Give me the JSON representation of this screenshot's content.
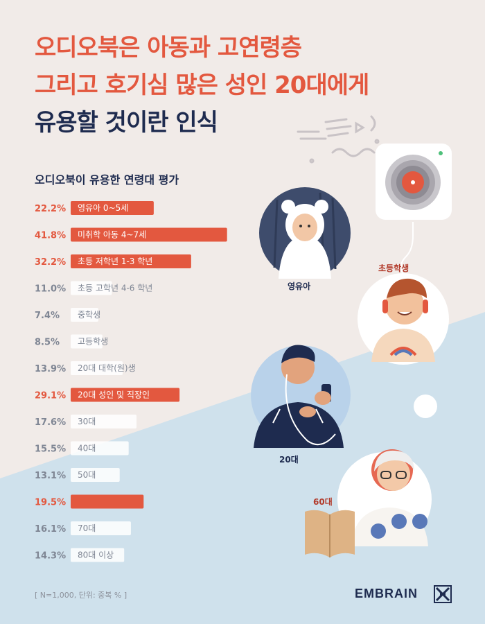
{
  "title": {
    "line1": "오디오북은 아동과 고연령층",
    "line2": "그리고 호기심 많은 성인 20대에게",
    "line3": "유용할 것이란 인식"
  },
  "colors": {
    "accent": "#e3583f",
    "navy": "#1e2b4f",
    "gray_text": "#7f8694",
    "bar_plain": "#ffffff"
  },
  "illustration_labels": {
    "infant": "영유아",
    "elementary": "초등학생",
    "twenties": "20대",
    "sixties": "60대"
  },
  "footnote": "[ N=1,000, 단위: 중복 % ]",
  "brand": "EMBRAIN",
  "chart_data": {
    "type": "bar",
    "orientation": "horizontal",
    "title": "오디오북이 유용한 연령대 평가",
    "unit": "%",
    "categories": [
      "영유아 0~5세",
      "미취학 아동 4~7세",
      "초등 저학년 1-3 학년",
      "초등 고학년 4-6 학년",
      "중학생",
      "고등학생",
      "20대 대학(원)생",
      "20대 성인 및 직장인",
      "30대",
      "40대",
      "50대",
      "",
      "70대",
      "80대 이상"
    ],
    "values": [
      22.2,
      41.8,
      32.2,
      11.0,
      7.4,
      8.5,
      13.9,
      29.1,
      17.6,
      15.5,
      13.1,
      19.5,
      16.1,
      14.3
    ],
    "value_labels": [
      "22.2%",
      "41.8%",
      "32.2%",
      "11.0%",
      "7.4%",
      "8.5%",
      "13.9%",
      "29.1%",
      "17.6%",
      "15.5%",
      "13.1%",
      "19.5%",
      "16.1%",
      "14.3%"
    ],
    "highlighted": [
      true,
      true,
      true,
      false,
      false,
      false,
      false,
      true,
      false,
      false,
      false,
      true,
      false,
      false
    ]
  }
}
